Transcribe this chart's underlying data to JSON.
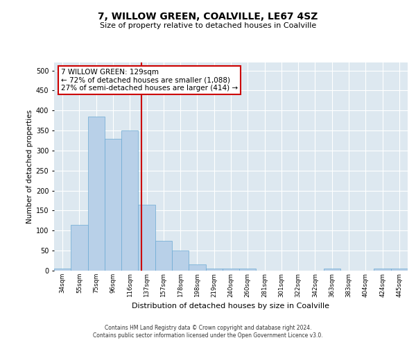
{
  "title": "7, WILLOW GREEN, COALVILLE, LE67 4SZ",
  "subtitle": "Size of property relative to detached houses in Coalville",
  "xlabel": "Distribution of detached houses by size in Coalville",
  "ylabel": "Number of detached properties",
  "bin_labels": [
    "34sqm",
    "55sqm",
    "75sqm",
    "96sqm",
    "116sqm",
    "137sqm",
    "157sqm",
    "178sqm",
    "198sqm",
    "219sqm",
    "240sqm",
    "260sqm",
    "281sqm",
    "301sqm",
    "322sqm",
    "342sqm",
    "363sqm",
    "383sqm",
    "404sqm",
    "424sqm",
    "445sqm"
  ],
  "bar_values": [
    5,
    115,
    385,
    330,
    350,
    165,
    75,
    50,
    15,
    5,
    5,
    5,
    0,
    0,
    0,
    0,
    5,
    0,
    0,
    5,
    5
  ],
  "bar_color": "#b8d0e8",
  "bar_edge_color": "#6aaad4",
  "vline_x": 4.67,
  "vline_color": "#cc0000",
  "annotation_text": "7 WILLOW GREEN: 129sqm\n← 72% of detached houses are smaller (1,088)\n27% of semi-detached houses are larger (414) →",
  "annotation_box_color": "#ffffff",
  "annotation_box_edge_color": "#cc0000",
  "ylim": [
    0,
    520
  ],
  "yticks": [
    0,
    50,
    100,
    150,
    200,
    250,
    300,
    350,
    400,
    450,
    500
  ],
  "background_color": "#dde8f0",
  "grid_color": "#ffffff",
  "footer_line1": "Contains HM Land Registry data © Crown copyright and database right 2024.",
  "footer_line2": "Contains public sector information licensed under the Open Government Licence v3.0."
}
